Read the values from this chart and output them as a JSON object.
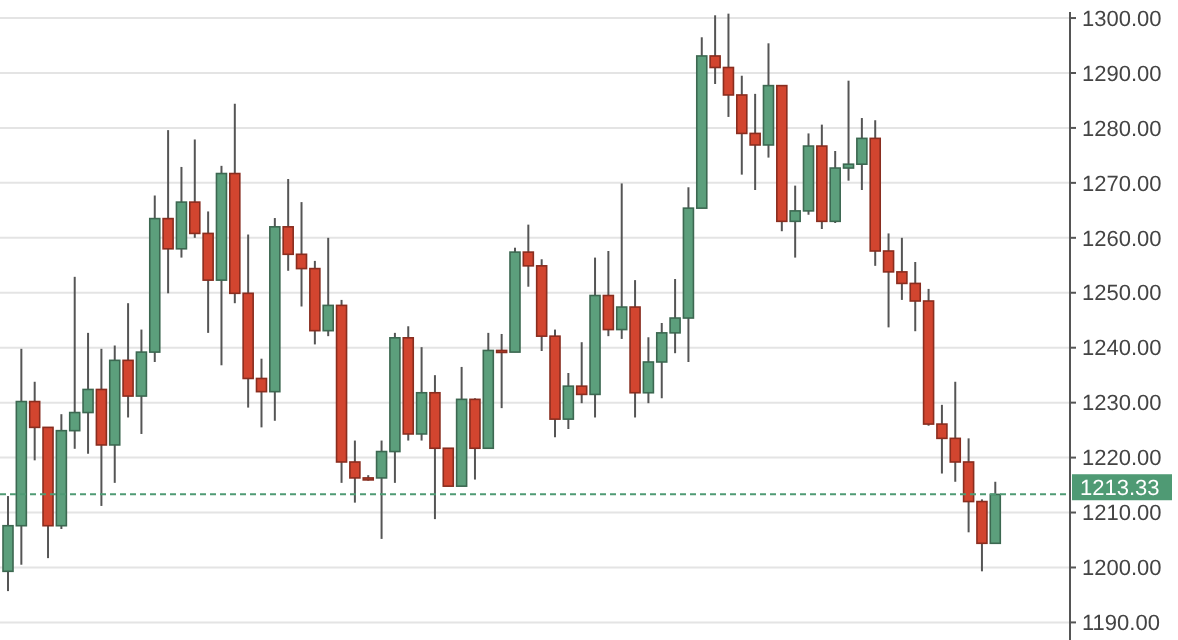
{
  "chart_data": {
    "type": "candlestick",
    "categories": [
      null,
      null,
      null,
      null,
      null,
      null,
      null,
      null,
      null,
      null,
      null,
      null,
      null,
      null,
      null,
      null,
      null,
      null,
      null,
      null,
      null,
      null,
      null,
      null,
      null,
      null,
      null,
      null,
      null,
      null,
      null,
      null,
      null,
      null,
      null,
      null,
      null,
      null,
      null,
      null,
      null,
      null,
      null,
      null,
      null,
      null,
      null,
      null,
      null,
      null,
      null,
      null,
      null,
      null,
      null,
      null,
      null,
      null,
      null,
      null,
      null,
      null,
      null,
      null,
      null,
      null,
      null,
      null,
      null,
      null,
      null,
      null,
      null,
      null,
      null
    ],
    "ohlc": [
      [
        1199.3,
        1213.0,
        1195.7,
        1207.6
      ],
      [
        1207.6,
        1239.8,
        1200.5,
        1230.2
      ],
      [
        1230.2,
        1233.8,
        1219.5,
        1225.5
      ],
      [
        1225.5,
        1225.5,
        1201.7,
        1207.6
      ],
      [
        1207.6,
        1227.9,
        1207.0,
        1224.9
      ],
      [
        1224.9,
        1252.9,
        1221.6,
        1228.2
      ],
      [
        1228.2,
        1242.7,
        1220.7,
        1232.4
      ],
      [
        1232.4,
        1239.8,
        1211.2,
        1222.3
      ],
      [
        1222.3,
        1240.4,
        1215.4,
        1237.7
      ],
      [
        1237.7,
        1248.1,
        1227.3,
        1231.2
      ],
      [
        1231.2,
        1243.3,
        1224.3,
        1239.2
      ],
      [
        1239.2,
        1267.7,
        1237.4,
        1263.5
      ],
      [
        1263.5,
        1279.6,
        1249.9,
        1258.0
      ],
      [
        1258.0,
        1272.9,
        1256.4,
        1266.5
      ],
      [
        1266.5,
        1277.9,
        1260.0,
        1260.8
      ],
      [
        1260.8,
        1264.8,
        1242.7,
        1252.3
      ],
      [
        1252.3,
        1273.1,
        1236.8,
        1271.7
      ],
      [
        1271.7,
        1284.4,
        1248.1,
        1249.9
      ],
      [
        1249.9,
        1260.6,
        1229.1,
        1234.4
      ],
      [
        1234.4,
        1238.0,
        1225.5,
        1232.0
      ],
      [
        1232.0,
        1263.6,
        1226.7,
        1262.0
      ],
      [
        1262.0,
        1270.7,
        1254.0,
        1257.0
      ],
      [
        1257.0,
        1266.5,
        1247.5,
        1254.4
      ],
      [
        1254.4,
        1255.8,
        1240.6,
        1243.1
      ],
      [
        1243.1,
        1260.0,
        1242.1,
        1247.7
      ],
      [
        1247.7,
        1248.7,
        1215.4,
        1219.2
      ],
      [
        1219.2,
        1223.1,
        1211.8,
        1216.3
      ],
      [
        1216.3,
        1216.8,
        1215.8,
        1216.3
      ],
      [
        1216.3,
        1223.1,
        1205.2,
        1221.1
      ],
      [
        1221.1,
        1242.7,
        1215.4,
        1241.8
      ],
      [
        1241.8,
        1243.9,
        1223.1,
        1224.3
      ],
      [
        1224.3,
        1240.1,
        1223.1,
        1231.8
      ],
      [
        1231.8,
        1235.0,
        1208.8,
        1221.7
      ],
      [
        1221.7,
        1221.7,
        1214.8,
        1214.8
      ],
      [
        1214.8,
        1236.5,
        1214.8,
        1230.6
      ],
      [
        1230.6,
        1230.8,
        1216.0,
        1221.7
      ],
      [
        1221.7,
        1242.7,
        1221.7,
        1239.5
      ],
      [
        1239.5,
        1242.5,
        1229.0,
        1239.2
      ],
      [
        1239.2,
        1258.2,
        1239.2,
        1257.4
      ],
      [
        1257.4,
        1262.4,
        1251.1,
        1254.9
      ],
      [
        1254.9,
        1256.1,
        1239.4,
        1242.1
      ],
      [
        1242.1,
        1243.3,
        1223.7,
        1227.0
      ],
      [
        1227.0,
        1235.4,
        1225.2,
        1233.0
      ],
      [
        1233.0,
        1241.0,
        1229.9,
        1231.5
      ],
      [
        1231.5,
        1256.4,
        1227.3,
        1249.5
      ],
      [
        1249.5,
        1257.6,
        1242.1,
        1243.3
      ],
      [
        1243.3,
        1269.9,
        1241.6,
        1247.4
      ],
      [
        1247.4,
        1252.3,
        1227.3,
        1231.8
      ],
      [
        1231.8,
        1241.9,
        1229.9,
        1237.4
      ],
      [
        1237.4,
        1244.5,
        1230.8,
        1242.7
      ],
      [
        1242.7,
        1252.5,
        1239.0,
        1245.4
      ],
      [
        1245.4,
        1269.2,
        1237.4,
        1265.4
      ],
      [
        1265.4,
        1296.5,
        1265.4,
        1293.1
      ],
      [
        1293.1,
        1300.5,
        1288.0,
        1291.0
      ],
      [
        1291.0,
        1300.8,
        1282.0,
        1286.0
      ],
      [
        1286.0,
        1289.5,
        1271.5,
        1279.0
      ],
      [
        1279.0,
        1286.2,
        1268.7,
        1276.9
      ],
      [
        1276.9,
        1295.4,
        1274.6,
        1287.7
      ],
      [
        1287.7,
        1287.7,
        1261.2,
        1263.0
      ],
      [
        1263.0,
        1269.5,
        1256.4,
        1264.9
      ],
      [
        1264.9,
        1279.0,
        1264.2,
        1276.7
      ],
      [
        1276.7,
        1280.6,
        1261.6,
        1263.0
      ],
      [
        1263.0,
        1275.8,
        1262.7,
        1272.7
      ],
      [
        1272.7,
        1288.6,
        1270.4,
        1273.4
      ],
      [
        1273.4,
        1281.8,
        1268.7,
        1278.1
      ],
      [
        1278.1,
        1281.4,
        1254.9,
        1257.6
      ],
      [
        1257.6,
        1260.8,
        1243.7,
        1253.8
      ],
      [
        1253.8,
        1260.0,
        1248.7,
        1251.7
      ],
      [
        1251.7,
        1255.6,
        1243.0,
        1248.5
      ],
      [
        1248.5,
        1250.7,
        1225.8,
        1226.1
      ],
      [
        1226.1,
        1229.6,
        1217.1,
        1223.5
      ],
      [
        1223.5,
        1233.8,
        1215.6,
        1219.2
      ],
      [
        1219.2,
        1223.5,
        1206.4,
        1212.0
      ],
      [
        1212.0,
        1212.4,
        1199.3,
        1204.4
      ],
      [
        1204.4,
        1215.6,
        1204.4,
        1213.3
      ]
    ],
    "colors": [
      "#5c9f7c",
      "#5c9f7c",
      "#d2452f",
      "#d2452f",
      "#5c9f7c",
      "#5c9f7c",
      "#5c9f7c",
      "#d2452f",
      "#5c9f7c",
      "#d2452f",
      "#5c9f7c",
      "#5c9f7c",
      "#d2452f",
      "#5c9f7c",
      "#d2452f",
      "#d2452f",
      "#5c9f7c",
      "#d2452f",
      "#d2452f",
      "#d2452f",
      "#5c9f7c",
      "#d2452f",
      "#d2452f",
      "#d2452f",
      "#5c9f7c",
      "#d2452f",
      "#d2452f",
      "#d2452f",
      "#5c9f7c",
      "#5c9f7c",
      "#d2452f",
      "#5c9f7c",
      "#d2452f",
      "#d2452f",
      "#5c9f7c",
      "#d2452f",
      "#5c9f7c",
      "#d2452f",
      "#5c9f7c",
      "#d2452f",
      "#d2452f",
      "#d2452f",
      "#5c9f7c",
      "#d2452f",
      "#5c9f7c",
      "#d2452f",
      "#5c9f7c",
      "#d2452f",
      "#5c9f7c",
      "#5c9f7c",
      "#5c9f7c",
      "#5c9f7c",
      "#5c9f7c",
      "#d2452f",
      "#d2452f",
      "#d2452f",
      "#d2452f",
      "#5c9f7c",
      "#d2452f",
      "#5c9f7c",
      "#5c9f7c",
      "#d2452f",
      "#5c9f7c",
      "#5c9f7c",
      "#5c9f7c",
      "#d2452f",
      "#d2452f",
      "#d2452f",
      "#d2452f",
      "#d2452f",
      "#d2452f",
      "#d2452f",
      "#d2452f",
      "#d2452f",
      "#5c9f7c"
    ],
    "ylim": [
      1186.8,
      1301.1
    ],
    "yticks": [
      {
        "value": 1190,
        "label": "1190.00"
      },
      {
        "value": 1200,
        "label": "1200.00"
      },
      {
        "value": 1210,
        "label": "1210.00"
      },
      {
        "value": 1220,
        "label": "1220.00"
      },
      {
        "value": 1230,
        "label": "1230.00"
      },
      {
        "value": 1240,
        "label": "1240.00"
      },
      {
        "value": 1250,
        "label": "1250.00"
      },
      {
        "value": 1260,
        "label": "1260.00"
      },
      {
        "value": 1270,
        "label": "1270.00"
      },
      {
        "value": 1280,
        "label": "1280.00"
      },
      {
        "value": 1290,
        "label": "1290.00"
      },
      {
        "value": 1300,
        "label": "1300.00"
      }
    ],
    "grid": "y",
    "tick_labels": "y",
    "ref_lines": [
      {
        "axis": "y",
        "value": 1213.33,
        "label": "1213.33",
        "color": "#4f9a74",
        "line_style": "dashed"
      }
    ]
  }
}
